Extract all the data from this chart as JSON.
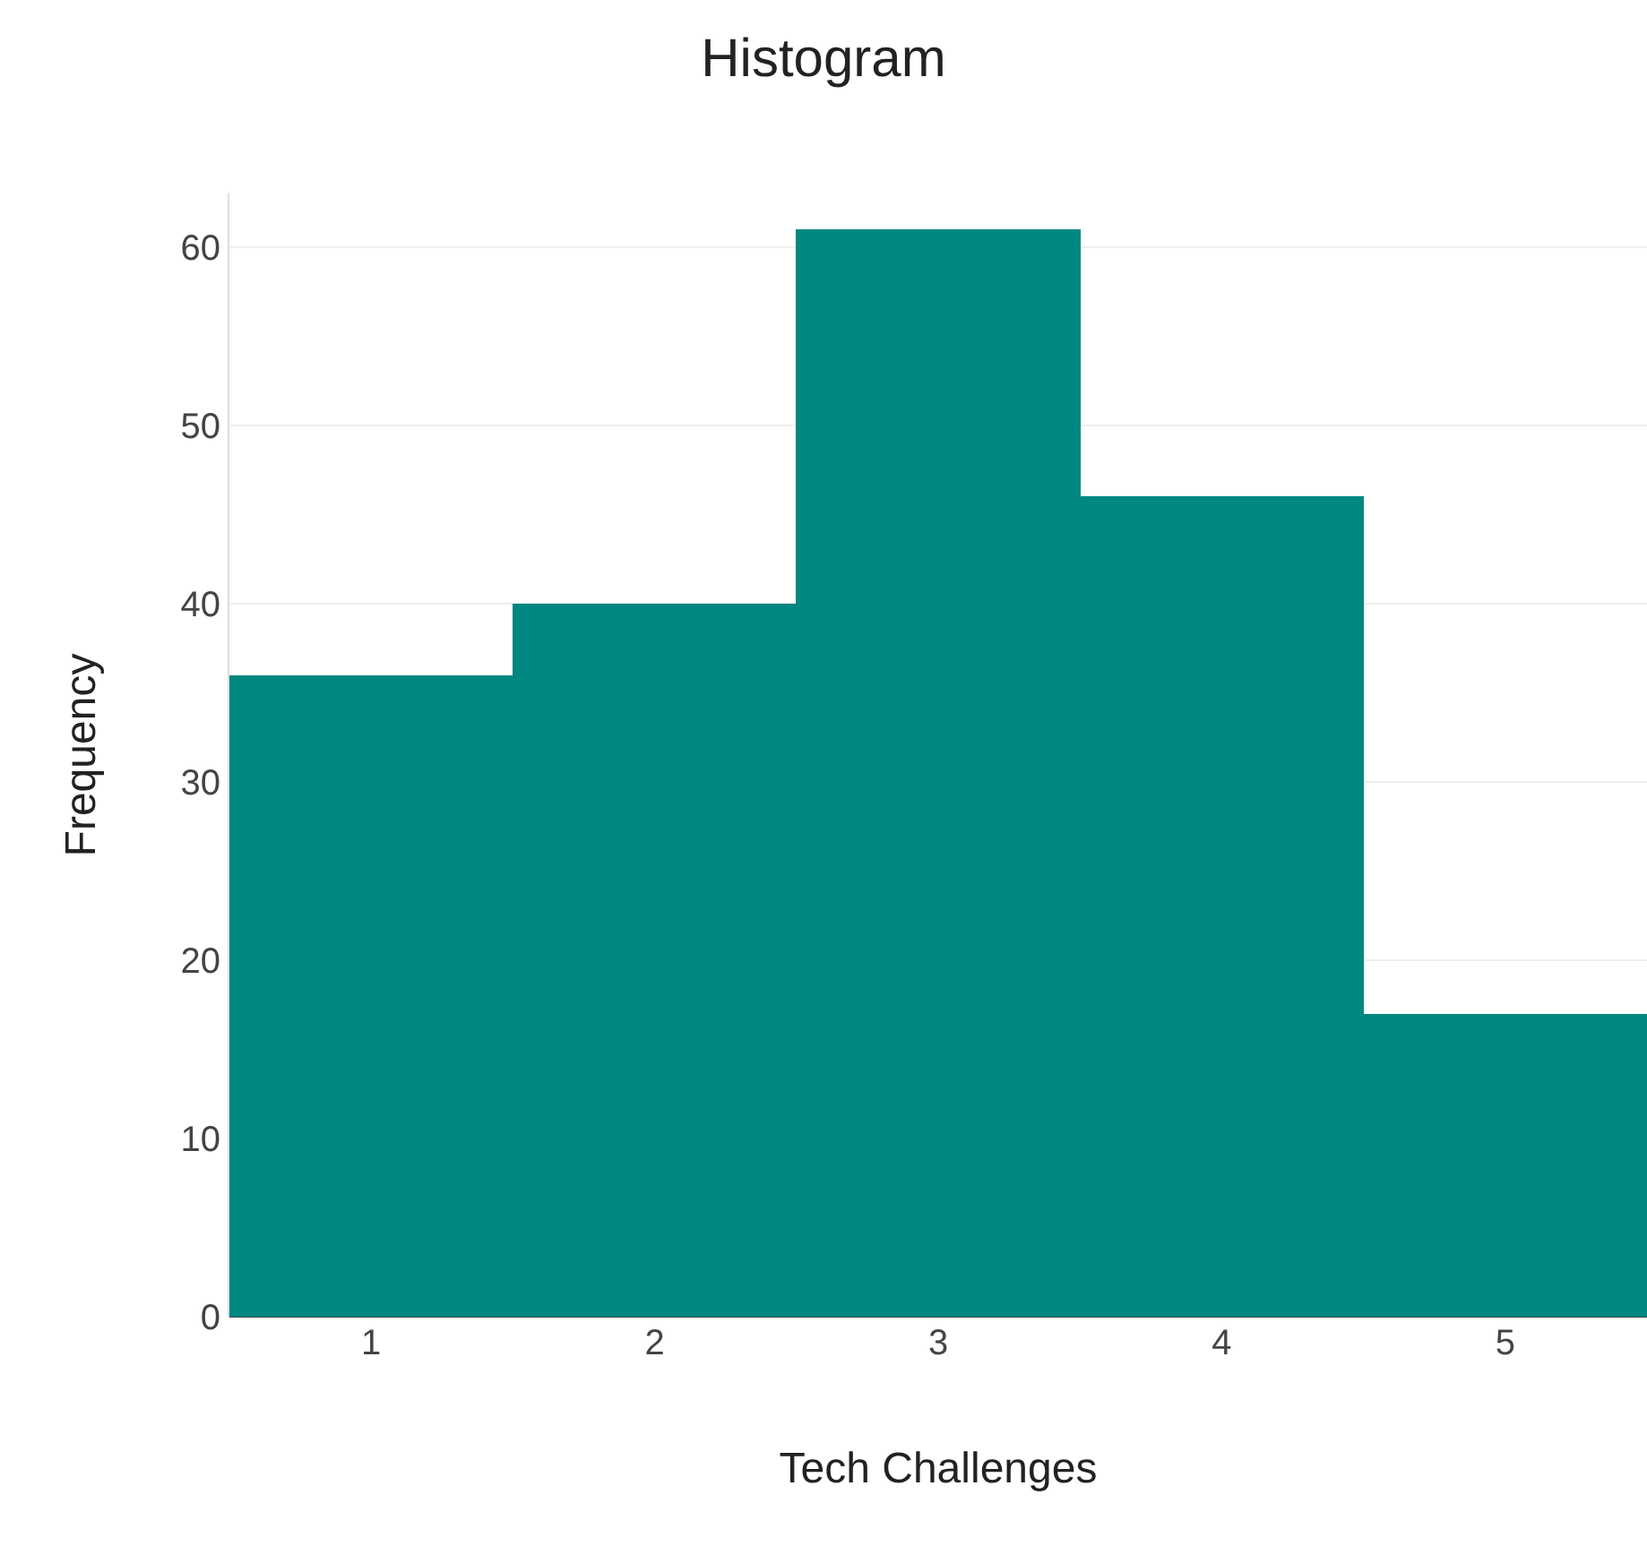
{
  "chart_data": {
    "type": "histogram",
    "title": "Histogram",
    "xlabel": "Tech Challenges",
    "ylabel": "Frequency",
    "bins": [
      0.5,
      1.5,
      2.5,
      3.5,
      4.5,
      5.5
    ],
    "values": [
      36,
      40,
      61,
      46,
      17
    ],
    "color": "#008781",
    "xlim": [
      0.5,
      5.5
    ],
    "xticks": [
      1,
      2,
      3,
      4,
      5
    ],
    "ylim": [
      0,
      63
    ],
    "yticks": [
      0,
      10,
      20,
      30,
      40,
      50,
      60
    ],
    "grid": "y"
  }
}
